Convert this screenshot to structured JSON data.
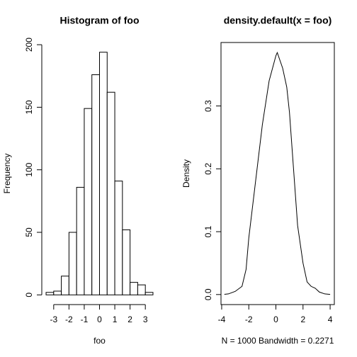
{
  "chart_data": [
    {
      "type": "histogram",
      "title": "Histogram of foo",
      "xlabel": "foo",
      "ylabel": "Frequency",
      "bins": [
        -3.5,
        -3,
        -2.5,
        -2,
        -1.5,
        -1,
        -0.5,
        0,
        0.5,
        1,
        1.5,
        2,
        2.5,
        3,
        3.5
      ],
      "values": [
        2,
        3,
        15,
        50,
        86,
        149,
        176,
        194,
        162,
        91,
        52,
        10,
        8,
        2
      ],
      "color": "#ffffff",
      "xlim": [
        -3.78,
        3.78
      ],
      "xticks": [
        -3,
        -2,
        -1,
        0,
        1,
        2,
        3
      ],
      "ylim": [
        -7.76,
        201.76
      ],
      "yticks": [
        0,
        50,
        100,
        150,
        200
      ]
    },
    {
      "type": "line",
      "title": "density.default(x = foo)",
      "xlabel": "N = 1000   Bandwidth = 0.2271",
      "ylabel": "Density",
      "x": [
        -3.8,
        -3.5,
        -3,
        -2.5,
        -2.2,
        -2,
        -1.5,
        -1,
        -0.5,
        0,
        0.1,
        0.5,
        0.8,
        1,
        1.3,
        1.6,
        2,
        2.3,
        2.6,
        2.9,
        3.2,
        3.6,
        4
      ],
      "values": [
        0.0003,
        0.001,
        0.005,
        0.013,
        0.04,
        0.09,
        0.18,
        0.27,
        0.34,
        0.38,
        0.385,
        0.36,
        0.33,
        0.29,
        0.2,
        0.11,
        0.05,
        0.02,
        0.013,
        0.01,
        0.004,
        0.001,
        0.0002
      ],
      "color": "#000000",
      "xlim": [
        -4.05,
        4.31
      ],
      "xticks": [
        -4,
        -2,
        0,
        2,
        4
      ],
      "ylim": [
        -0.016,
        0.401
      ],
      "yticks": [
        {
          "value": 0,
          "label": "0.0"
        },
        0.1,
        0.2,
        0.3
      ]
    }
  ]
}
